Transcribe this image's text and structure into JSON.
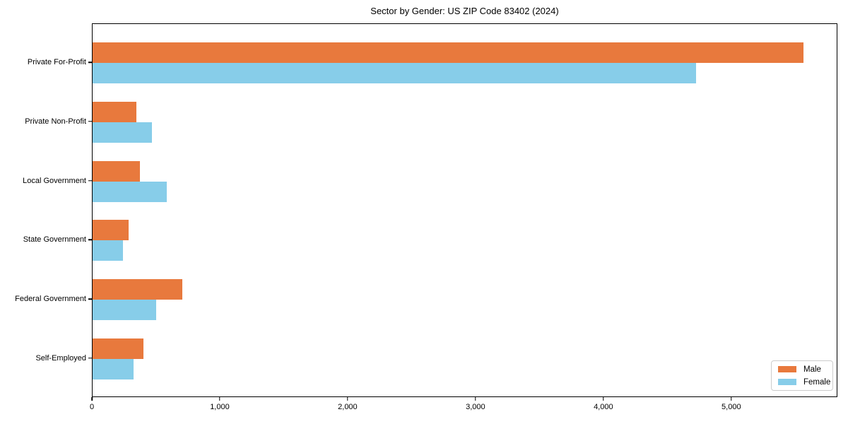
{
  "title": "Sector by Gender: US ZIP Code 83402 (2024)",
  "legend": {
    "items": [
      {
        "label": "Male",
        "color": "#e8793d"
      },
      {
        "label": "Female",
        "color": "#87cde9"
      }
    ]
  },
  "chart_data": {
    "type": "bar",
    "orientation": "horizontal",
    "title": "Sector by Gender: US ZIP Code 83402 (2024)",
    "categories": [
      "Private For-Profit",
      "Private Non-Profit",
      "Local Government",
      "State Government",
      "Federal Government",
      "Self-Employed"
    ],
    "series": [
      {
        "name": "Male",
        "color": "#e8793d",
        "values": [
          5560,
          340,
          370,
          280,
          700,
          400
        ]
      },
      {
        "name": "Female",
        "color": "#87cde9",
        "values": [
          4720,
          465,
          580,
          235,
          500,
          320
        ]
      }
    ],
    "xlabel": "",
    "ylabel": "",
    "xlim": [
      0,
      5830
    ],
    "xticks": [
      0,
      1000,
      2000,
      3000,
      4000,
      5000
    ],
    "xtick_labels": [
      "0",
      "1,000",
      "2,000",
      "3,000",
      "4,000",
      "5,000"
    ],
    "grid": false,
    "legend_position": "lower right",
    "background": "#ffffff"
  }
}
